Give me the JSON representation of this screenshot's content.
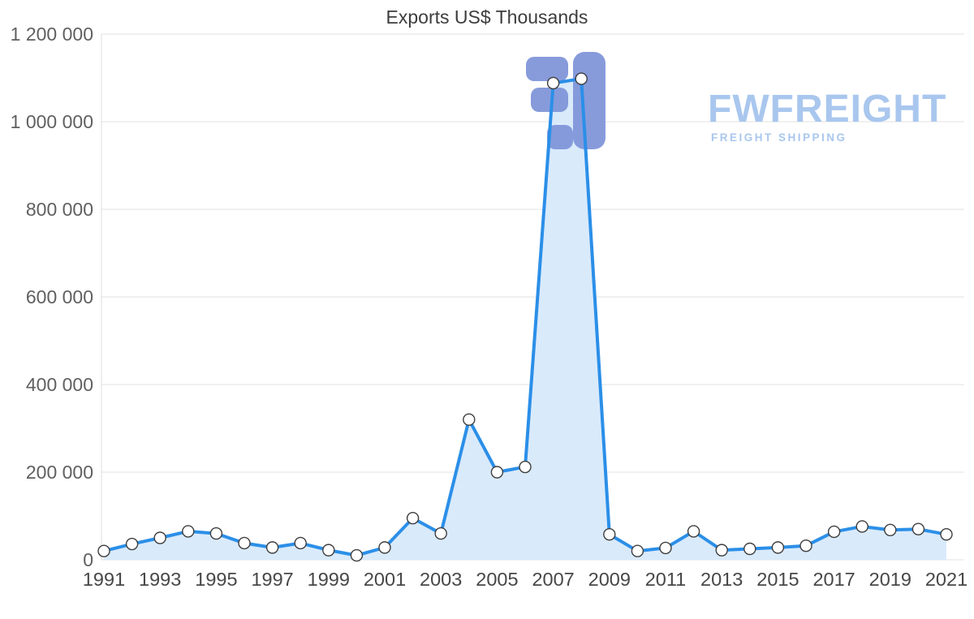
{
  "watermark": {
    "brand": "FWFREIGHT",
    "tagline": "FREIGHT SHIPPING"
  },
  "chart_data": {
    "type": "area",
    "title": "Exports US$ Thousands",
    "xlabel": "",
    "ylabel": "",
    "x": [
      1991,
      1992,
      1993,
      1994,
      1995,
      1996,
      1997,
      1998,
      1999,
      2000,
      2001,
      2002,
      2003,
      2004,
      2005,
      2006,
      2007,
      2008,
      2009,
      2010,
      2011,
      2012,
      2013,
      2014,
      2015,
      2016,
      2017,
      2018,
      2019,
      2020,
      2021
    ],
    "series": [
      {
        "name": "Exports US$ Thousands",
        "values": [
          20000,
          36000,
          50000,
          65000,
          60000,
          38000,
          28000,
          38000,
          22000,
          10000,
          28000,
          95000,
          60000,
          320000,
          200000,
          212000,
          1088000,
          1098000,
          58000,
          20000,
          27000,
          65000,
          22000,
          25000,
          28000,
          32000,
          64000,
          76000,
          68000,
          70000,
          58000
        ]
      }
    ],
    "ylim": [
      0,
      1200000
    ],
    "ytick_step": 200000,
    "yticks_labels": [
      "0",
      "200 000",
      "400 000",
      "600 000",
      "800 000",
      "1 000 000",
      "1 200 000"
    ],
    "xticks": [
      1991,
      1993,
      1995,
      1997,
      1999,
      2001,
      2003,
      2005,
      2007,
      2009,
      2011,
      2013,
      2015,
      2017,
      2019,
      2021
    ],
    "grid": true,
    "legend_position": "none",
    "colors": {
      "line": "#2b8fe8",
      "fill": "#d9eafb",
      "grid": "#e2e2e2",
      "axis": "#dcdcdc",
      "y_tick_label": "#606060",
      "x_tick_label": "#474747",
      "marker_fill": "#ffffff",
      "marker_stroke": "#3e3e3e",
      "watermark_text": "#a9c7ee",
      "watermark_icon": "#7d92d8"
    }
  }
}
